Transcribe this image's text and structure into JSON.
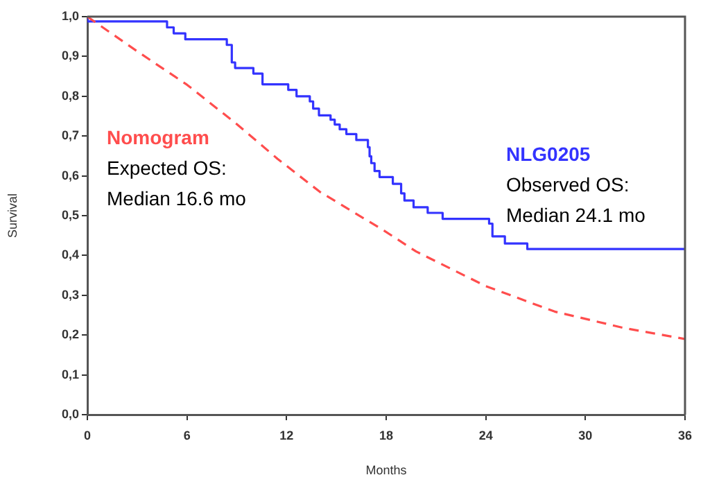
{
  "chart_data": {
    "type": "line",
    "xlabel": "Months",
    "ylabel": "Survival",
    "xlim": [
      0,
      36
    ],
    "xticks": [
      0,
      6,
      12,
      18,
      24,
      30,
      36
    ],
    "ylim": [
      0,
      1
    ],
    "yticks": [
      {
        "value": 0,
        "label": "0,0"
      },
      {
        "value": 0.1,
        "label": "0,1"
      },
      {
        "value": 0.2,
        "label": "0,2"
      },
      {
        "value": 0.3,
        "label": "0,3"
      },
      {
        "value": 0.4,
        "label": "0,4"
      },
      {
        "value": 0.5,
        "label": "0,5"
      },
      {
        "value": 0.6,
        "label": "0,6"
      },
      {
        "value": 0.7,
        "label": "0,7"
      },
      {
        "value": 0.8,
        "label": "0,8"
      },
      {
        "value": 0.9,
        "label": "0,9"
      },
      {
        "value": 1,
        "label": "1,0"
      }
    ],
    "grid": false,
    "legend": false,
    "marker": "none",
    "series": [
      {
        "name": "Nomogram",
        "line_style": "dashed",
        "color": "#ff4d4d",
        "x": [
          0,
          3,
          6,
          9,
          11.45,
          14,
          17.85,
          19.8,
          24,
          28.15,
          32.3,
          36
        ],
        "values": [
          1,
          0.913,
          0.829,
          0.73,
          0.643,
          0.56,
          0.463,
          0.41,
          0.323,
          0.259,
          0.218,
          0.19
        ]
      },
      {
        "name": "NLG0205",
        "type": "step",
        "line_style": "solid",
        "color": "#3333ff",
        "x": [
          0,
          4.8,
          5.2,
          5.9,
          8.4,
          8.7,
          8.9,
          10,
          10.55,
          12.1,
          12.6,
          13.4,
          13.6,
          13.95,
          14.65,
          14.9,
          15.2,
          15.6,
          16.2,
          16.9,
          17,
          17.1,
          17.3,
          17.6,
          18.4,
          18.9,
          19.1,
          19.65,
          20.5,
          21.4,
          24.2,
          24.4,
          25.15,
          26.5,
          28.85,
          36
        ],
        "values": [
          1,
          0.988,
          0.973,
          0.958,
          0.943,
          0.929,
          0.885,
          0.871,
          0.857,
          0.83,
          0.816,
          0.8,
          0.787,
          0.769,
          0.752,
          0.741,
          0.729,
          0.717,
          0.705,
          0.69,
          0.672,
          0.649,
          0.632,
          0.612,
          0.597,
          0.58,
          0.556,
          0.538,
          0.521,
          0.507,
          0.492,
          0.48,
          0.448,
          0.43,
          0.416,
          0.416
        ]
      }
    ],
    "annotations": [
      "Expected OS:",
      "Median 16.6 mo",
      "Observed OS:",
      "Median 24.1 mo"
    ]
  }
}
